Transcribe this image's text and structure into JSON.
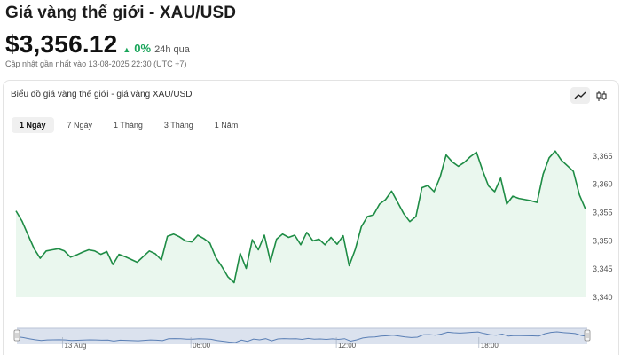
{
  "header": {
    "title": "Giá vàng thế giới - XAU/USD",
    "price": "$3,356.12",
    "change_pct": "0%",
    "change_period": "24h qua",
    "updated": "Cập nhật gần nhất vào 13-08-2025 22:30 (UTC +7)"
  },
  "card": {
    "title": "Biểu đồ giá vàng thế giới - giá vàng XAU/USD",
    "tools": [
      {
        "name": "line-chart-icon",
        "active": true
      },
      {
        "name": "candlestick-icon",
        "active": false
      }
    ]
  },
  "tabs": [
    {
      "label": "1 Ngày",
      "active": true
    },
    {
      "label": "7 Ngày",
      "active": false
    },
    {
      "label": "1 Tháng",
      "active": false
    },
    {
      "label": "3 Tháng",
      "active": false
    },
    {
      "label": "1 Năm",
      "active": false
    }
  ],
  "colors": {
    "line": "#1e8c45",
    "area": "#eaf7ee",
    "accent_green": "#19a55a",
    "navigator_fill": "#dbe2ee",
    "navigator_line": "#5a7fb5"
  },
  "chart_data": {
    "type": "area",
    "y_ticks": [
      3340,
      3345,
      3350,
      3355,
      3360,
      3365
    ],
    "y_tick_labels": [
      "3,340",
      "3,345",
      "3,350",
      "3,355",
      "3,360",
      "3,365"
    ],
    "ylim": [
      3340,
      3367.5
    ],
    "y": [
      3355.3,
      3353.5,
      3351.0,
      3348.6,
      3346.9,
      3348.2,
      3348.4,
      3348.6,
      3348.2,
      3347.1,
      3347.5,
      3348.0,
      3348.4,
      3348.2,
      3347.6,
      3348.1,
      3345.8,
      3347.6,
      3347.2,
      3346.7,
      3346.2,
      3347.2,
      3348.2,
      3347.7,
      3346.6,
      3350.8,
      3351.2,
      3350.7,
      3350.0,
      3349.8,
      3351.0,
      3350.4,
      3349.6,
      3347.0,
      3345.4,
      3343.6,
      3342.6,
      3347.8,
      3345.1,
      3350.2,
      3348.4,
      3351.0,
      3346.3,
      3350.3,
      3351.2,
      3350.6,
      3351.0,
      3349.3,
      3351.5,
      3350.0,
      3350.3,
      3349.3,
      3350.6,
      3349.4,
      3350.9,
      3345.6,
      3348.5,
      3352.5,
      3354.3,
      3354.6,
      3356.5,
      3357.3,
      3358.8,
      3356.8,
      3354.8,
      3353.4,
      3354.3,
      3359.4,
      3359.8,
      3358.7,
      3361.3,
      3365.2,
      3364.0,
      3363.2,
      3363.9,
      3364.9,
      3365.7,
      3362.5,
      3359.7,
      3358.7,
      3361.1,
      3356.5,
      3357.9,
      3357.5,
      3357.3,
      3357.1,
      3356.8,
      3361.8,
      3364.7,
      3365.9,
      3364.3,
      3363.3,
      3362.3,
      3358.1,
      3355.6
    ],
    "navigator_labels": [
      {
        "label": "13 Aug",
        "pos": 0.08
      },
      {
        "label": "06:00",
        "pos": 0.305
      },
      {
        "label": "12:00",
        "pos": 0.56
      },
      {
        "label": "18:00",
        "pos": 0.81
      }
    ]
  }
}
